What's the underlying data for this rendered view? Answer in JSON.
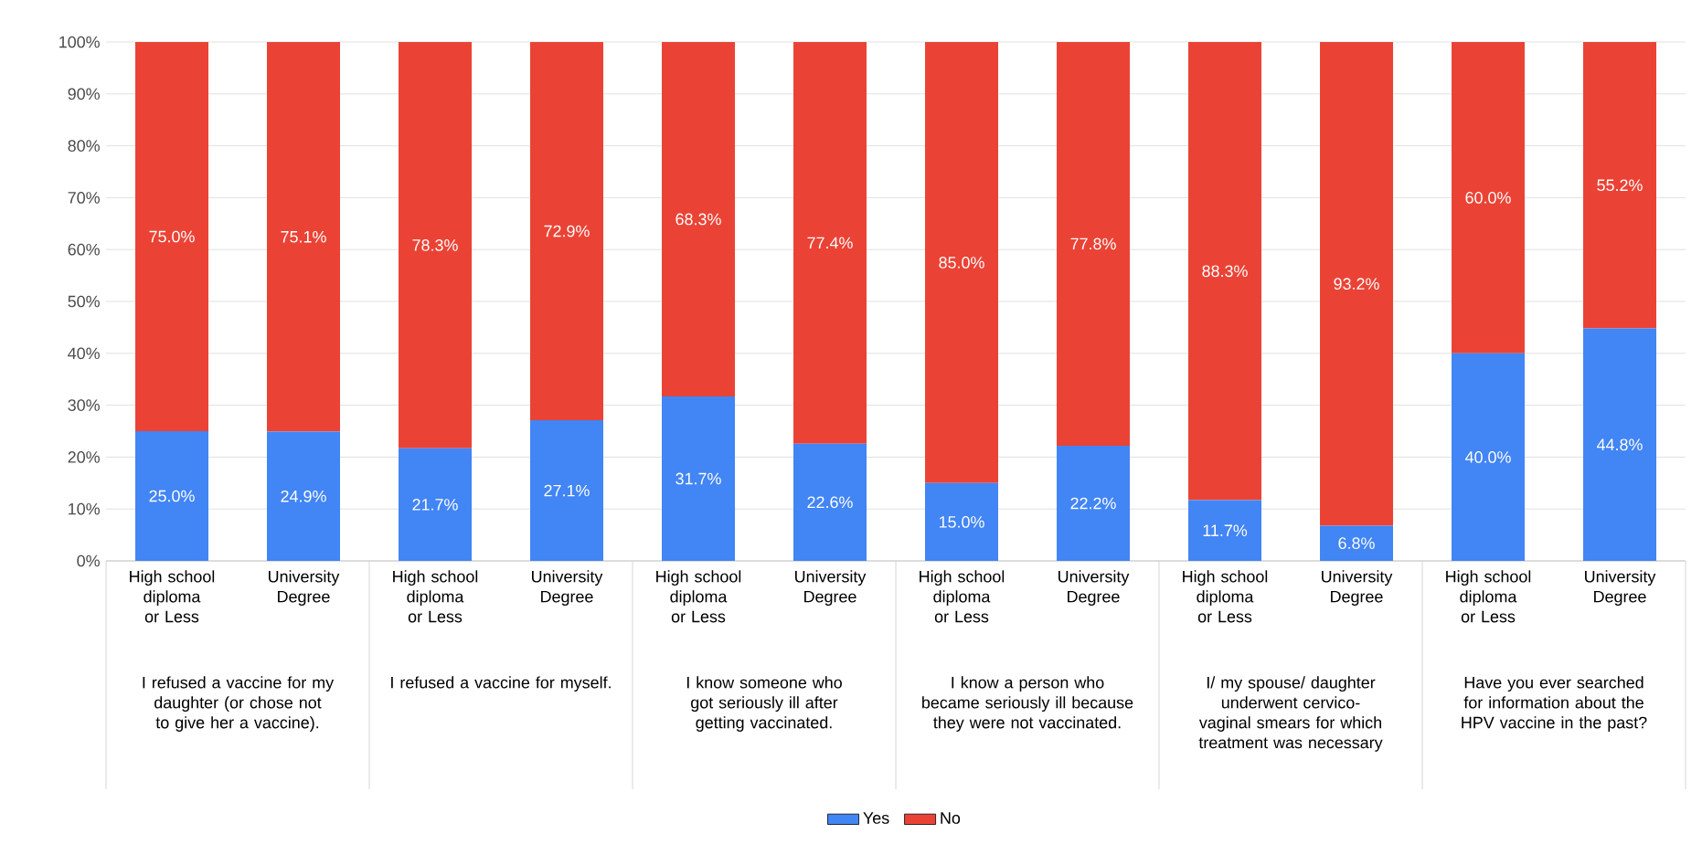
{
  "chart_data": {
    "type": "bar",
    "stacked": true,
    "categories": [
      "High school diploma or Less",
      "University Degree",
      "High school diploma or Less",
      "University Degree",
      "High school diploma or Less",
      "University Degree",
      "High school diploma or Less",
      "University Degree",
      "High school diploma or Less",
      "University Degree",
      "High school diploma or Less",
      "University Degree"
    ],
    "series": [
      {
        "name": "Yes",
        "color": "#4285f4",
        "values": [
          25.0,
          24.9,
          21.7,
          27.1,
          31.7,
          22.6,
          15.0,
          22.2,
          11.7,
          6.8,
          40.0,
          44.8
        ],
        "value_labels": [
          "25.0%",
          "24.9%",
          "21.7%",
          "27.1%",
          "31.7%",
          "22.6%",
          "15.0%",
          "22.2%",
          "11.7%",
          "6.8%",
          "40.0%",
          "44.8%"
        ]
      },
      {
        "name": "No",
        "color": "#ea4335",
        "values": [
          75.0,
          75.1,
          78.3,
          72.9,
          68.3,
          77.4,
          85.0,
          77.8,
          88.3,
          93.2,
          60.0,
          55.2
        ],
        "value_labels": [
          "75.0%",
          "75.1%",
          "78.3%",
          "72.9%",
          "68.3%",
          "77.4%",
          "85.0%",
          "77.8%",
          "88.3%",
          "93.2%",
          "60.0%",
          "55.2%"
        ]
      }
    ],
    "annotations": [
      "I refused a vaccine for my daughter (or chose not to give her a vaccine).",
      "I refused a vaccine for myself.",
      "I know someone who got seriously ill after getting vaccinated.",
      "I know a person who became seriously ill because they were not vaccinated.",
      "I/ my spouse/ daughter underwent cervico-vaginal smears for which treatment was necessary",
      "Have you ever searched for information about the HPV vaccine in the past?"
    ],
    "ylim": [
      0,
      100
    ],
    "yticks": [
      {
        "value": 0,
        "label": "0%"
      },
      {
        "value": 10,
        "label": "10%"
      },
      {
        "value": 20,
        "label": "20%"
      },
      {
        "value": 30,
        "label": "30%"
      },
      {
        "value": 40,
        "label": "40%"
      },
      {
        "value": 50,
        "label": "50%"
      },
      {
        "value": 60,
        "label": "60%"
      },
      {
        "value": 70,
        "label": "70%"
      },
      {
        "value": 80,
        "label": "80%"
      },
      {
        "value": 90,
        "label": "90%"
      },
      {
        "value": 100,
        "label": "100%"
      }
    ],
    "grid": "y",
    "legend": "bottom"
  }
}
